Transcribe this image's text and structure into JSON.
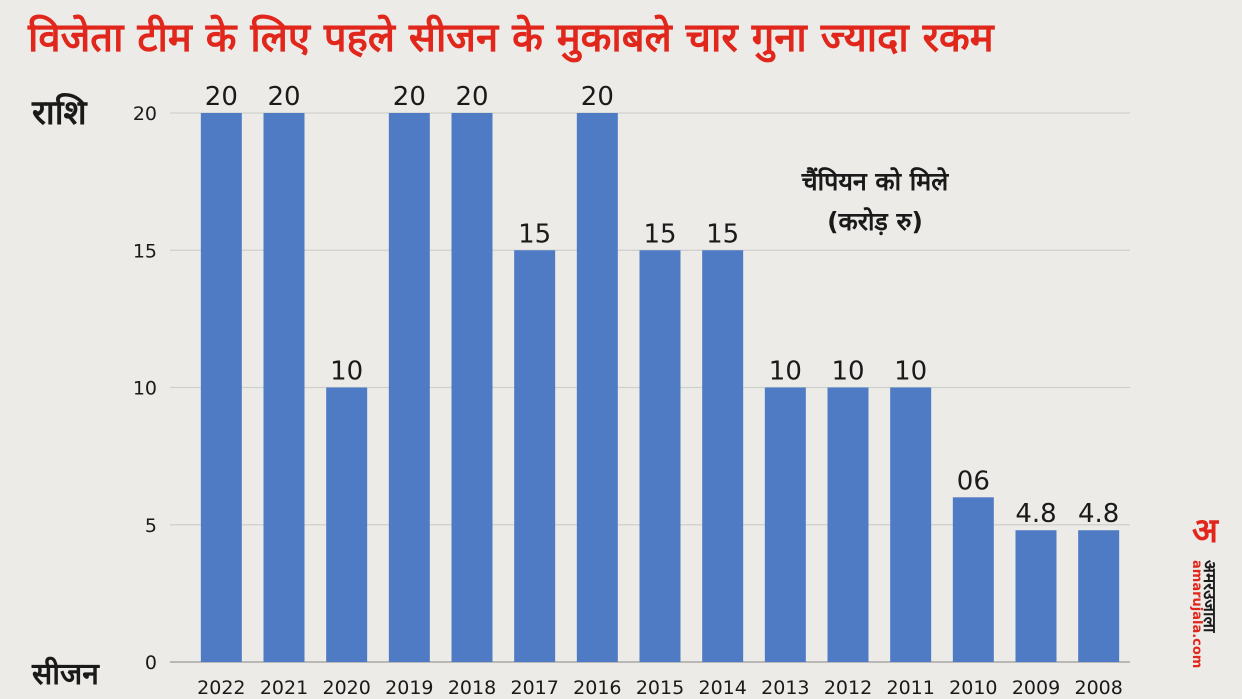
{
  "chart_data": {
    "type": "bar",
    "title": "विजेता टीम के लिए पहले सीजन के मुकाबले चार गुना ज्यादा रकम",
    "ylabel": "राशि",
    "xlabel": "सीजन",
    "annotation": [
      "चैंपियन को मिले",
      "(करोड़ रु)"
    ],
    "categories": [
      "2022",
      "2021",
      "2020",
      "2019",
      "2018",
      "2017",
      "2016",
      "2015",
      "2014",
      "2013",
      "2012",
      "2011",
      "2010",
      "2009",
      "2008"
    ],
    "values": [
      20,
      20,
      10,
      20,
      20,
      15,
      20,
      15,
      15,
      10,
      10,
      10,
      6,
      4.8,
      4.8
    ],
    "value_labels": [
      "20",
      "20",
      "10",
      "20",
      "20",
      "15",
      "20",
      "15",
      "15",
      "10",
      "10",
      "10",
      "06",
      "4.8",
      "4.8"
    ],
    "y_ticks": [
      "0",
      "5",
      "10",
      "15",
      "20"
    ],
    "ylim": [
      0,
      20
    ],
    "grid": true,
    "bar_color": "#4f7bc4"
  },
  "logo": {
    "mark": "अ",
    "text": "अमरउजाला",
    "site": "amarujala.com"
  }
}
